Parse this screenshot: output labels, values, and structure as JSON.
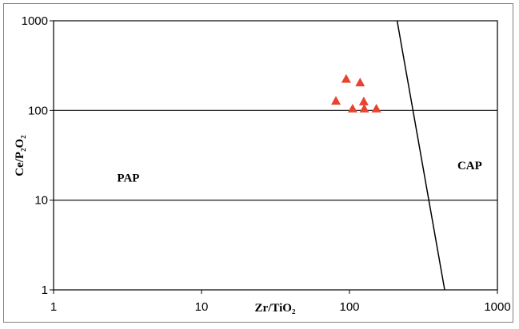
{
  "chart_data": {
    "type": "scatter",
    "title": "",
    "xlabel": "Zr/TiO₂",
    "ylabel": "Ce/P₂O₂",
    "xscale": "log",
    "yscale": "log",
    "xlim": [
      1,
      1000
    ],
    "ylim": [
      1,
      1000
    ],
    "x_ticks": [
      "1",
      "10",
      "100",
      "1000"
    ],
    "y_ticks": [
      "1",
      "10",
      "100",
      "1000"
    ],
    "grid": "horizontal",
    "marker": "triangle",
    "marker_color": "#e8432e",
    "points": [
      {
        "x": 95,
        "y": 225
      },
      {
        "x": 118,
        "y": 205
      },
      {
        "x": 81,
        "y": 128
      },
      {
        "x": 125,
        "y": 126
      },
      {
        "x": 105,
        "y": 105
      },
      {
        "x": 126,
        "y": 105
      },
      {
        "x": 152,
        "y": 105
      }
    ],
    "boundary_line": [
      {
        "x": 210,
        "y": 1000
      },
      {
        "x": 440,
        "y": 1
      }
    ],
    "regions": [
      {
        "label": "PAP",
        "x": 3.2,
        "y": 16
      },
      {
        "label": "CAP",
        "x": 650,
        "y": 22
      }
    ]
  }
}
